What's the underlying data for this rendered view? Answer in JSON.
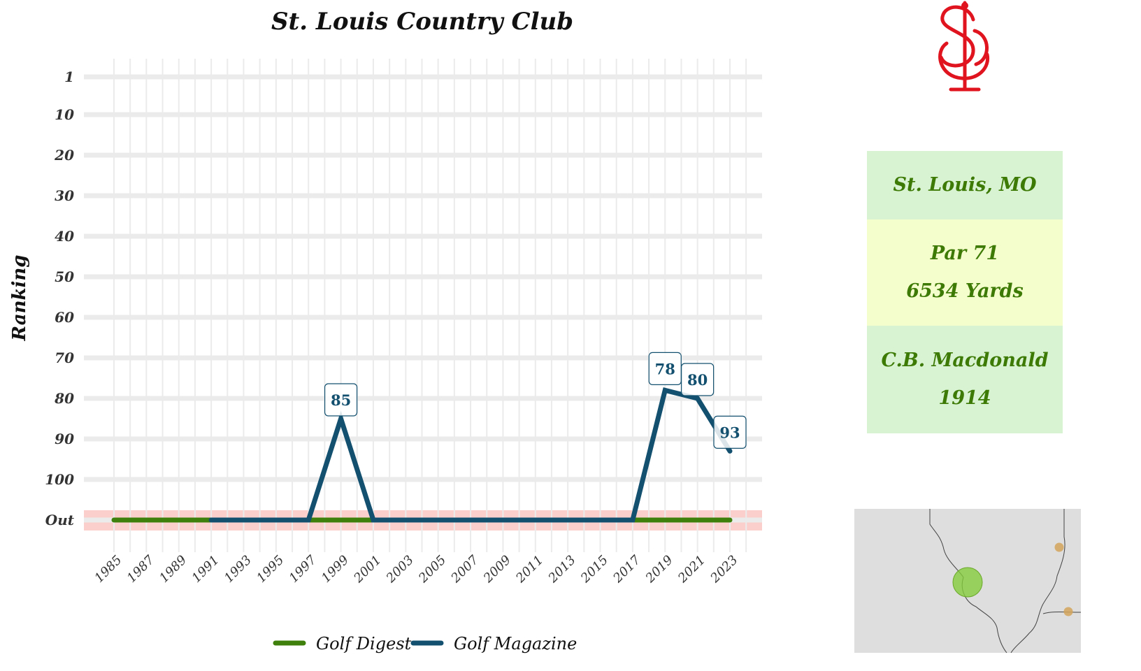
{
  "chart_data": {
    "type": "line",
    "title": "St. Louis Country Club",
    "ylabel": "Ranking",
    "xlabel": "",
    "x_ticks": [
      1985,
      1987,
      1989,
      1991,
      1993,
      1995,
      1997,
      1999,
      2001,
      2003,
      2005,
      2007,
      2009,
      2011,
      2013,
      2015,
      2017,
      2019,
      2021,
      2023
    ],
    "y_ticks": [
      "1",
      "10",
      "20",
      "30",
      "40",
      "50",
      "60",
      "70",
      "80",
      "90",
      "100",
      "Out"
    ],
    "y_tick_values": [
      1,
      10,
      20,
      30,
      40,
      50,
      60,
      70,
      80,
      90,
      100,
      110
    ],
    "out_value": 110,
    "grid": true,
    "legend_position": "bottom",
    "series": [
      {
        "name": "Golf Digest",
        "color": "#3f7f0c",
        "points": [
          [
            1985,
            "Out"
          ],
          [
            2023,
            "Out"
          ]
        ]
      },
      {
        "name": "Golf Magazine",
        "color": "#13506f",
        "points": [
          [
            1991,
            "Out"
          ],
          [
            1997,
            "Out"
          ],
          [
            1999,
            85
          ],
          [
            2001,
            "Out"
          ],
          [
            2017,
            "Out"
          ],
          [
            2019,
            78
          ],
          [
            2021,
            80
          ],
          [
            2023,
            93
          ]
        ]
      }
    ],
    "data_labels": [
      {
        "x": 1999,
        "y": 85,
        "text": "85"
      },
      {
        "x": 2019,
        "y": 78,
        "text": "78"
      },
      {
        "x": 2021,
        "y": 80,
        "text": "80"
      },
      {
        "x": 2023,
        "y": 93,
        "text": "93"
      }
    ]
  },
  "info": {
    "location": "St. Louis, MO",
    "par": "Par 71",
    "yards": "6534 Yards",
    "architect": "C.B. Macdonald",
    "year": "1914"
  },
  "colors": {
    "out_band": "#fbd0cc",
    "grid": "#ebebeb",
    "box_green": "#d8f3d2",
    "box_yellow": "#f4fdcc",
    "box_text": "#3d7a05",
    "logo_red": "#e0141e"
  },
  "icons": {
    "logo": "club-monogram-logo",
    "map": "regional-location-map"
  }
}
